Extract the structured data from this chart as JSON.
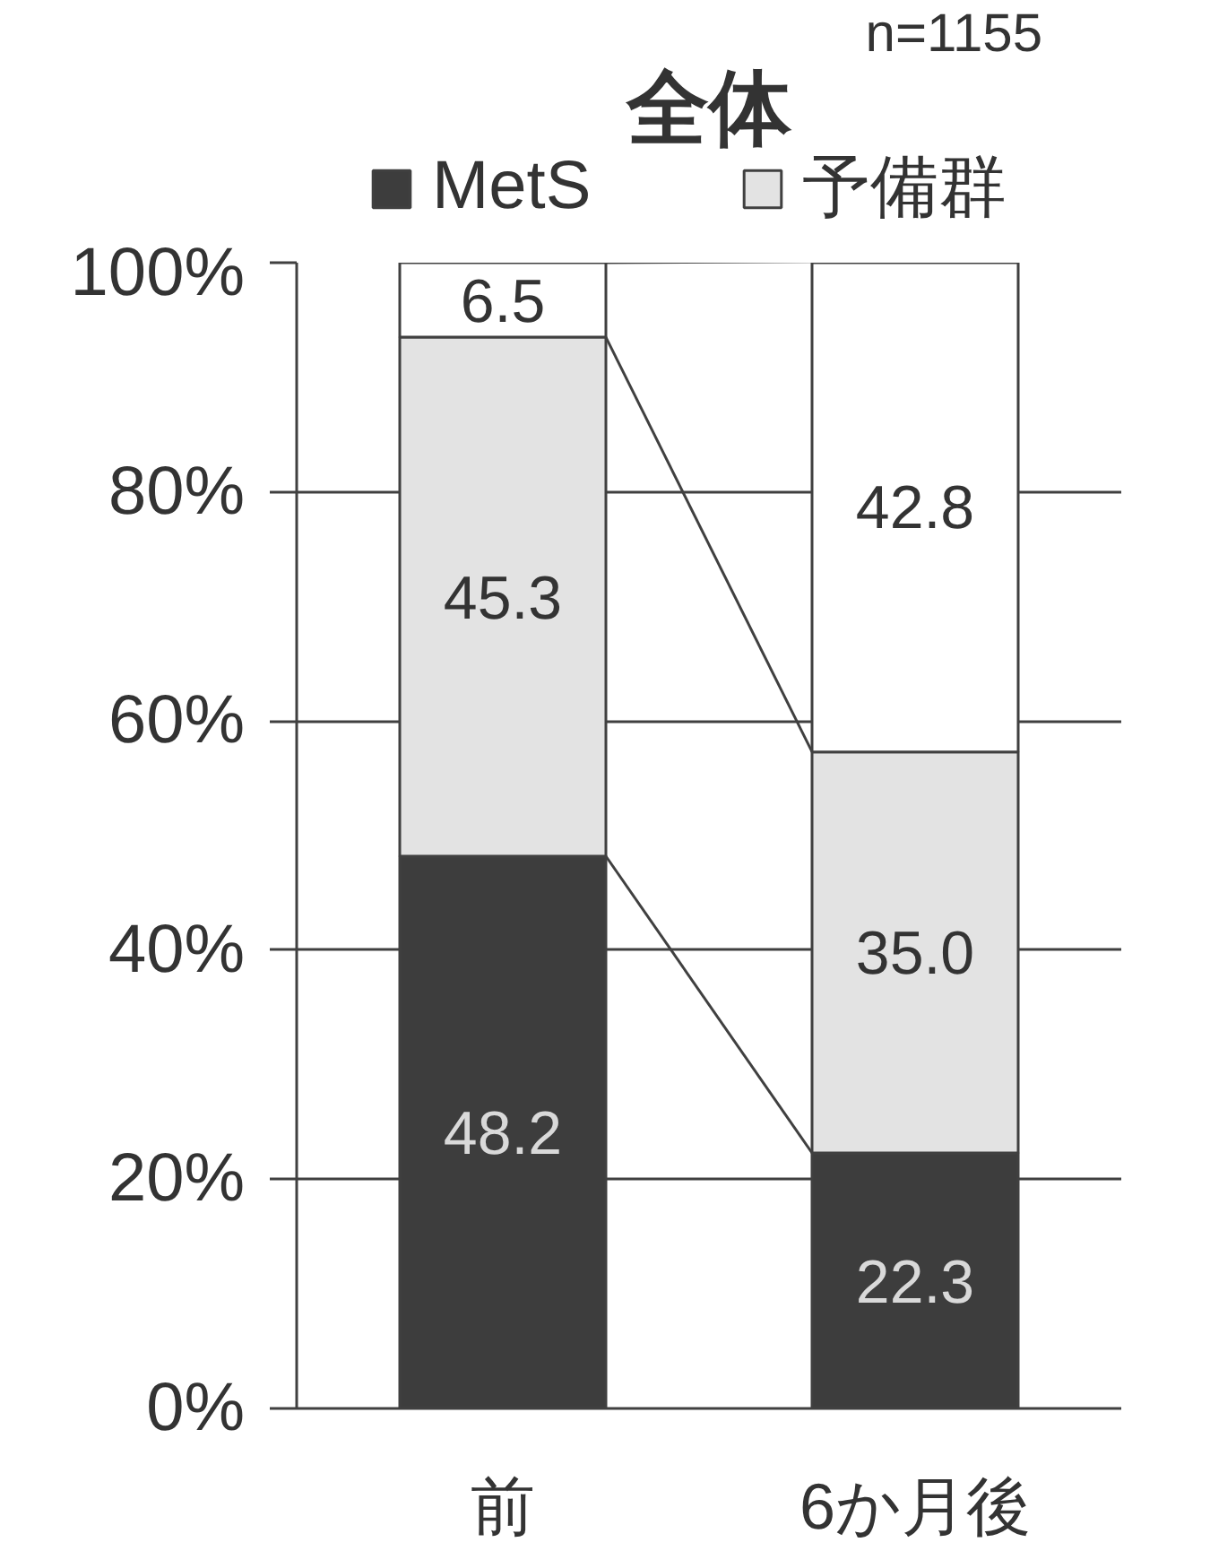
{
  "chart_data": {
    "type": "bar",
    "title": "全体",
    "annotations": [
      "n=1155"
    ],
    "categories": [
      "前",
      "6か月後"
    ],
    "stacked": true,
    "series": [
      {
        "name": "MetS",
        "color": "#3d3d3d",
        "values": [
          48.2,
          22.3
        ],
        "value_labels": [
          "48.2",
          "22.3"
        ]
      },
      {
        "name": "予備群",
        "color": "#e3e3e3",
        "values": [
          45.3,
          35.0
        ],
        "value_labels": [
          "45.3",
          "35.0"
        ]
      },
      {
        "color": "#ffffff",
        "values": [
          6.5,
          42.8
        ],
        "value_labels": [
          "6.5",
          "42.8"
        ]
      }
    ],
    "ylim": [
      0,
      100
    ],
    "yticks": [
      {
        "value": 0,
        "label": "0%"
      },
      {
        "value": 20,
        "label": "20%"
      },
      {
        "value": 40,
        "label": "40%"
      },
      {
        "value": 60,
        "label": "60%"
      },
      {
        "value": 80,
        "label": "80%"
      },
      {
        "value": 100,
        "label": "100%"
      }
    ],
    "grid": "y",
    "legend": "top",
    "line_style": "solid"
  }
}
